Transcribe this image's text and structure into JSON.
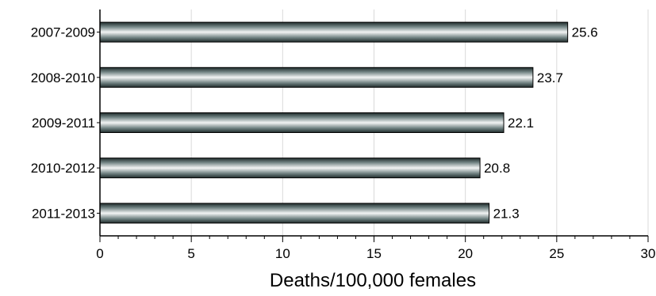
{
  "chart_data": {
    "type": "bar",
    "orientation": "horizontal",
    "title": "",
    "xlabel": "Deaths/100,000 females",
    "ylabel": "",
    "categories": [
      "2007-2009",
      "2008-2010",
      "2009-2011",
      "2010-2012",
      "2011-2013"
    ],
    "values": [
      25.6,
      23.7,
      22.1,
      20.8,
      21.3
    ],
    "value_labels": [
      "25.6",
      "23.7",
      "22.1",
      "20.8",
      "21.3"
    ],
    "xlim": [
      0,
      30
    ],
    "x_ticks": [
      0,
      5,
      10,
      15,
      20,
      25,
      30
    ],
    "x_tick_labels": [
      "0",
      "5",
      "10",
      "15",
      "20",
      "25",
      "30"
    ],
    "grid": "vertical",
    "legend": "none",
    "colors": {
      "bar_dark": "#1f2b2b",
      "bar_mid": "#6f8181",
      "bar_light": "#f2f4f4",
      "bar_outline": "#000000",
      "grid": "#d9d9d9",
      "axis": "#000000"
    }
  }
}
